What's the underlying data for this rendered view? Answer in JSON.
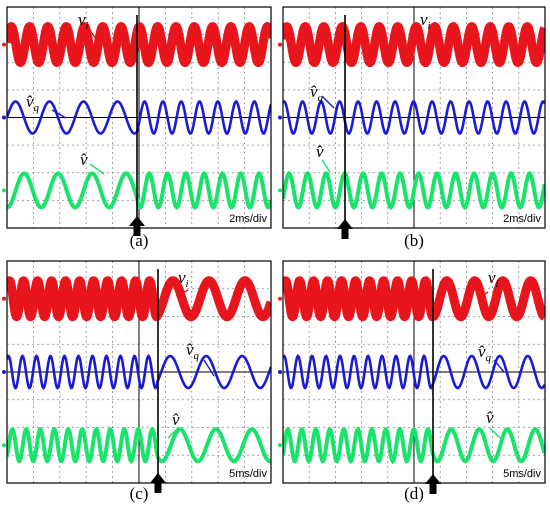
{
  "panels": [
    {
      "id": "a",
      "caption": "(a)",
      "timebase": "2ms/div"
    },
    {
      "id": "b",
      "caption": "(b)",
      "timebase": "2ms/div"
    },
    {
      "id": "c",
      "caption": "(c)",
      "timebase": "5ms/div"
    },
    {
      "id": "d",
      "caption": "(d)",
      "timebase": "5ms/div"
    }
  ],
  "labels": {
    "vi": "v",
    "vi_sub": "i",
    "vq": "v̂",
    "vq_sub": "q",
    "vhat": "v̂"
  },
  "colors": {
    "vi": "#e8161c",
    "vq": "#1b1bd4",
    "vhat": "#19e36a",
    "grid": "#8a8a8a",
    "frame": "#000000",
    "marker": "#000000"
  }
}
